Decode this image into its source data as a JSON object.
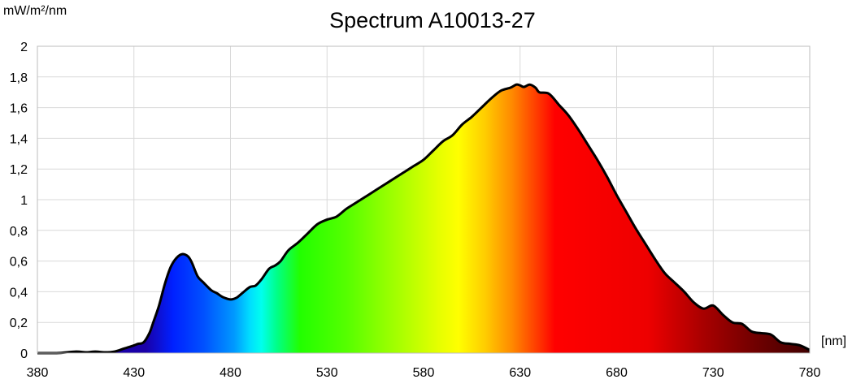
{
  "chart_data": {
    "type": "area",
    "title": "Spectrum A10013-27",
    "ylabel": "mW/m²/nm",
    "xlabel": "[nm]",
    "xlim": [
      380,
      780
    ],
    "ylim": [
      0,
      2
    ],
    "x_ticks": [
      "380",
      "430",
      "480",
      "530",
      "580",
      "630",
      "680",
      "730",
      "780"
    ],
    "y_ticks": [
      "0",
      "0,2",
      "0,4",
      "0,6",
      "0,8",
      "1",
      "1,2",
      "1,4",
      "1,6",
      "1,8",
      "2"
    ],
    "grid": true,
    "series": [
      {
        "x": [
          380,
          390,
          400,
          405,
          410,
          415,
          420,
          425,
          430,
          432,
          435,
          438,
          440,
          443,
          446,
          449,
          452,
          455,
          458,
          460,
          463,
          466,
          470,
          473,
          476,
          480,
          483,
          486,
          490,
          493,
          496,
          500,
          503,
          506,
          510,
          515,
          520,
          525,
          530,
          535,
          540,
          545,
          550,
          555,
          560,
          565,
          570,
          575,
          580,
          585,
          590,
          595,
          600,
          605,
          610,
          615,
          620,
          625,
          628,
          630,
          632,
          635,
          638,
          640,
          645,
          650,
          655,
          660,
          665,
          670,
          675,
          680,
          685,
          690,
          695,
          700,
          705,
          710,
          715,
          720,
          725,
          730,
          735,
          740,
          745,
          750,
          755,
          760,
          765,
          770,
          775,
          780
        ],
        "y": [
          0,
          0,
          0.01,
          0.005,
          0.01,
          0.005,
          0.01,
          0.03,
          0.05,
          0.06,
          0.07,
          0.13,
          0.2,
          0.31,
          0.45,
          0.56,
          0.62,
          0.645,
          0.63,
          0.59,
          0.5,
          0.46,
          0.41,
          0.39,
          0.365,
          0.35,
          0.36,
          0.39,
          0.43,
          0.44,
          0.48,
          0.55,
          0.57,
          0.6,
          0.67,
          0.72,
          0.78,
          0.84,
          0.87,
          0.89,
          0.94,
          0.98,
          1.02,
          1.06,
          1.1,
          1.14,
          1.18,
          1.22,
          1.26,
          1.32,
          1.38,
          1.42,
          1.49,
          1.54,
          1.6,
          1.66,
          1.71,
          1.73,
          1.75,
          1.745,
          1.735,
          1.75,
          1.73,
          1.7,
          1.69,
          1.62,
          1.55,
          1.46,
          1.36,
          1.26,
          1.15,
          1.03,
          0.92,
          0.81,
          0.71,
          0.61,
          0.52,
          0.46,
          0.4,
          0.33,
          0.29,
          0.31,
          0.25,
          0.2,
          0.19,
          0.14,
          0.13,
          0.12,
          0.07,
          0.06,
          0.05,
          0.02
        ]
      }
    ]
  }
}
